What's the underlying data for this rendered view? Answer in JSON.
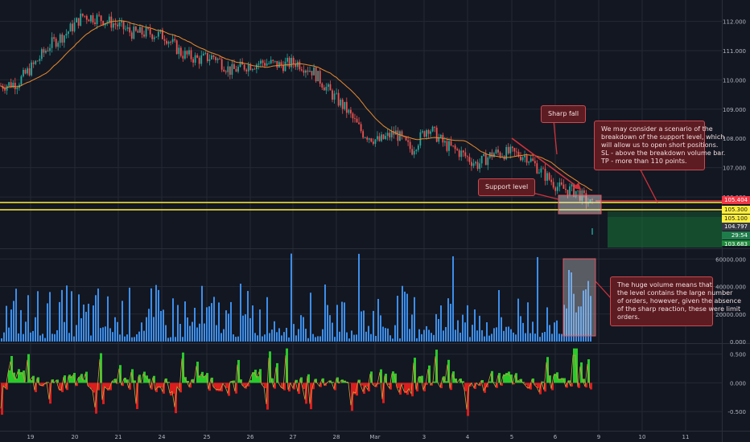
{
  "colors": {
    "background": "#131722",
    "grid": "#242833",
    "axis_text": "#b2b5be",
    "candle_up": "#26a69a",
    "candle_down": "#ef5350",
    "ma_line": "#e98b2d",
    "support_line": "#ffef3b",
    "volume_bar": "#3d8eea",
    "osc_pos": "#2bd42b",
    "osc_neg": "#e61e1e",
    "annotation_bg": "#5d1c22",
    "annotation_border": "#c94a50",
    "annotation_text": "#f2dede",
    "arrow": "#d3313a"
  },
  "chart_data": [
    {
      "type": "candlestick",
      "pane": "price",
      "x_ticks": [
        "19",
        "20",
        "21",
        "24",
        "25",
        "26",
        "27",
        "28",
        "Mar",
        "3",
        "4",
        "5",
        "6",
        "9",
        "10",
        "11"
      ],
      "y_ticks": [
        "112.000",
        "111.000",
        "110.000",
        "109.000",
        "108.000",
        "107.000",
        "106.000"
      ],
      "ylim": [
        104.3,
        112.4
      ],
      "series_close_path": [
        109.8,
        109.9,
        110.5,
        111.2,
        111.6,
        112.2,
        112.1,
        111.9,
        111.6,
        111.6,
        111.5,
        110.9,
        110.7,
        110.8,
        110.3,
        110.5,
        110.6,
        110.5,
        110.6,
        110.3,
        109.6,
        109.0,
        108.2,
        107.9,
        108.2,
        107.6,
        108.4,
        107.8,
        107.5,
        107.1,
        107.5,
        107.5,
        107.4,
        106.8,
        106.3,
        106.2,
        105.7
      ],
      "price_labels": [
        {
          "text": "105.404",
          "bg": "#f23645",
          "fg": "#ffffff"
        },
        {
          "text": "105.300",
          "bg": "#ffef3b",
          "fg": "#131722"
        },
        {
          "text": "105.100",
          "bg": "#ffef3b",
          "fg": "#131722"
        },
        {
          "text": "104.797",
          "bg": "#363a45",
          "fg": "#ffffff"
        },
        {
          "text": "29:54",
          "bg": "#1e7c4a",
          "fg": "#ffffff"
        },
        {
          "text": "103.683",
          "bg": "#1e8c3a",
          "fg": "#ffffff"
        }
      ]
    },
    {
      "type": "bar",
      "pane": "volume",
      "y_ticks": [
        "60000.000",
        "40000.000",
        "20000.000",
        "0.000"
      ],
      "ylim": [
        0,
        66000
      ],
      "range": [
        2000,
        66000
      ]
    },
    {
      "type": "area",
      "pane": "oscillator",
      "y_ticks": [
        "0.500",
        "0.000",
        "-0.500"
      ],
      "ylim": [
        -0.75,
        0.65
      ],
      "range": [
        -0.7,
        0.6
      ]
    }
  ],
  "annotations": {
    "sharp_fall": "Sharp fall",
    "support_level": "Support level",
    "scenario": [
      "We may consider a scenario of the",
      "breakdown of the support level, which",
      "will allow us to open short positions.",
      "SL - above the breakdown volume bar.",
      "TP - more than 110 points."
    ],
    "volume": [
      "The huge volume means that",
      "the level contains the large number",
      "of orders, however, given the absence",
      "of the sharp reaction, these were limit",
      "orders."
    ]
  }
}
